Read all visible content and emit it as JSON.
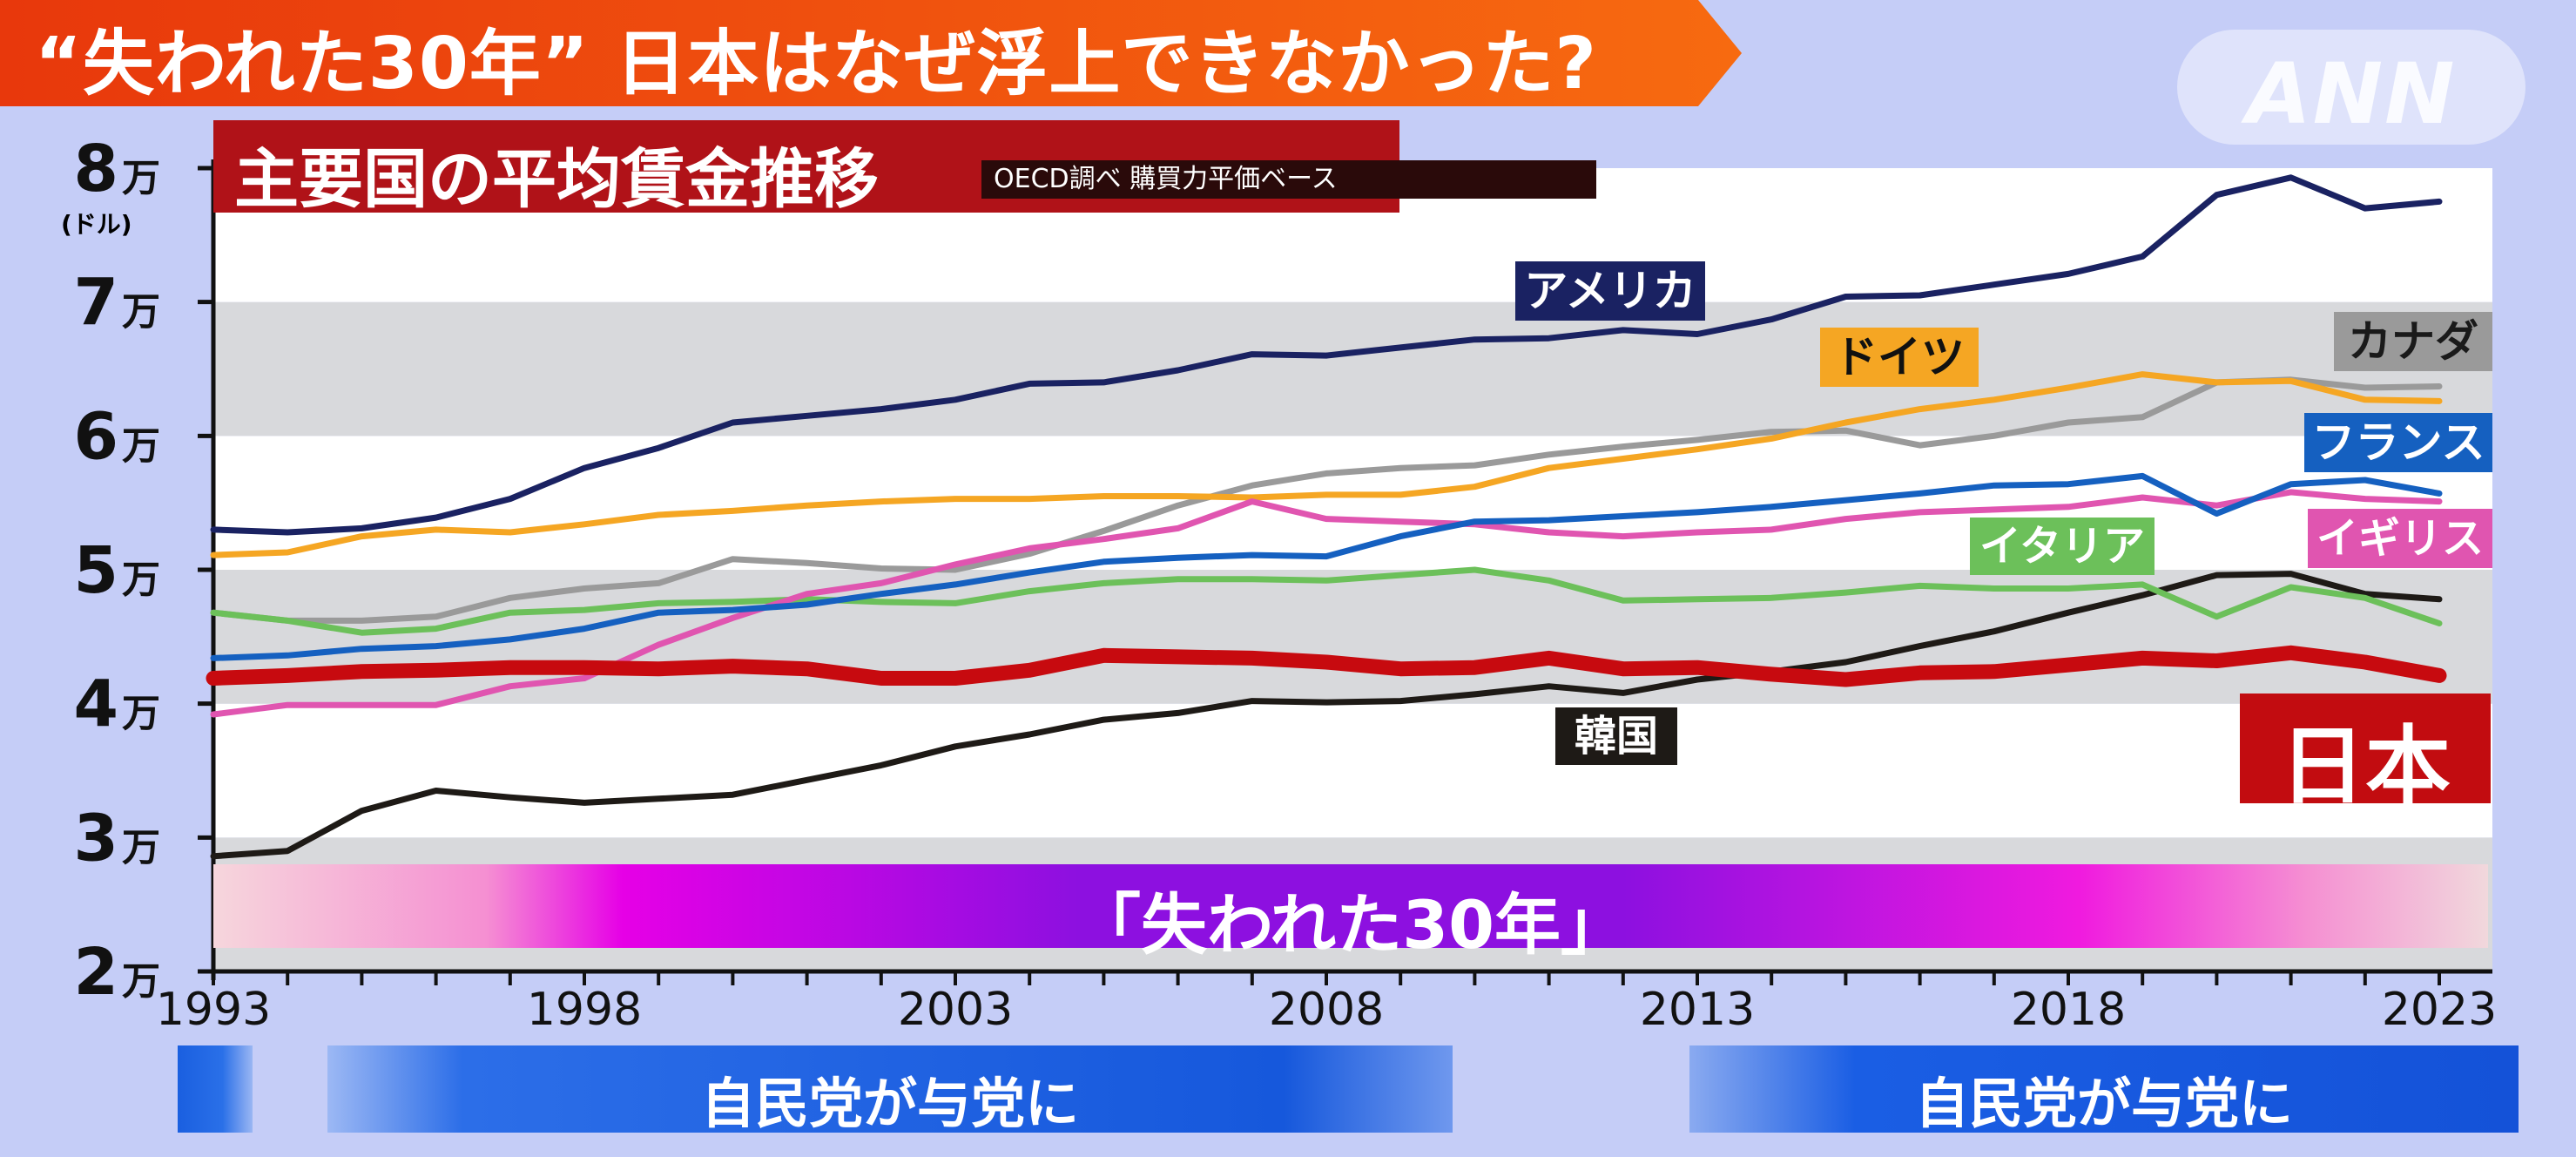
{
  "header": {
    "title": "“失われた30年” 日本はなぜ浮上できなかった?",
    "logo": "ANN"
  },
  "subtitle": {
    "main": "主要国の平均賃金推移",
    "note": "OECD調べ 購買力平価ベース"
  },
  "colors": {
    "banner": "#f24a0c",
    "subtitle_bg": "#b01218",
    "america": "#1a2262",
    "germany": "#f5a623",
    "canada": "#9a9a9a",
    "france": "#1560c0",
    "uk": "#e055b0",
    "italy": "#6cc05a",
    "korea": "#1e1a16",
    "japan": "#c70a0f",
    "band_gray": "#d8d9dc"
  },
  "lost_decades_label": "「失われた30年」",
  "ldp_periods": [
    {
      "label": "自民党が与党に"
    },
    {
      "label": "自民党が与党に"
    }
  ],
  "chart_data": {
    "type": "line",
    "title": "主要国の平均賃金推移",
    "subtitle": "OECD調べ 購買力平価ベース",
    "ylabel_unit": "(ドル)",
    "ylim": [
      20000,
      80000
    ],
    "yticks": [
      {
        "value": 80000,
        "label": "8万"
      },
      {
        "value": 70000,
        "label": "7万"
      },
      {
        "value": 60000,
        "label": "6万"
      },
      {
        "value": 50000,
        "label": "5万"
      },
      {
        "value": 40000,
        "label": "4万"
      },
      {
        "value": 30000,
        "label": "3万"
      },
      {
        "value": 20000,
        "label": "2万"
      }
    ],
    "xlim": [
      1993,
      2023
    ],
    "xticks": [
      1993,
      1998,
      2003,
      2008,
      2013,
      2018,
      2023
    ],
    "x": [
      1993,
      1994,
      1995,
      1996,
      1997,
      1998,
      1999,
      2000,
      2001,
      2002,
      2003,
      2004,
      2005,
      2006,
      2007,
      2008,
      2009,
      2010,
      2011,
      2012,
      2013,
      2014,
      2015,
      2016,
      2017,
      2018,
      2019,
      2020,
      2021,
      2022,
      2023
    ],
    "series": [
      {
        "key": "america",
        "name": "アメリカ",
        "color": "#1a2262",
        "width": 7,
        "values": [
          53000,
          52800,
          53100,
          53900,
          55300,
          57600,
          59100,
          61000,
          61500,
          62000,
          62700,
          63900,
          64000,
          64900,
          66100,
          66000,
          66600,
          67200,
          67300,
          67900,
          67600,
          68700,
          70400,
          70500,
          71300,
          72100,
          73400,
          78000,
          79300,
          77000,
          77500
        ]
      },
      {
        "key": "germany",
        "name": "ドイツ",
        "color": "#f5a623",
        "width": 7,
        "values": [
          51100,
          51300,
          52500,
          53000,
          52800,
          53400,
          54100,
          54400,
          54800,
          55100,
          55300,
          55300,
          55500,
          55500,
          55400,
          55600,
          55600,
          56200,
          57600,
          58300,
          59000,
          59800,
          61000,
          62000,
          62700,
          63600,
          64600,
          64000,
          64100,
          62700,
          62600
        ]
      },
      {
        "key": "canada",
        "name": "カナダ",
        "color": "#9a9a9a",
        "width": 7,
        "values": [
          46800,
          46200,
          46200,
          46500,
          47900,
          48600,
          49000,
          50800,
          50500,
          50100,
          50000,
          51200,
          52900,
          54800,
          56300,
          57200,
          57600,
          57800,
          58600,
          59200,
          59700,
          60300,
          60400,
          59300,
          60000,
          61000,
          61400,
          64000,
          64200,
          63600,
          63700
        ]
      },
      {
        "key": "france",
        "name": "フランス",
        "color": "#1560c0",
        "width": 7,
        "values": [
          43400,
          43600,
          44100,
          44300,
          44800,
          45600,
          46800,
          47000,
          47400,
          48200,
          48900,
          49800,
          50600,
          50900,
          51100,
          51000,
          52500,
          53600,
          53700,
          54000,
          54300,
          54700,
          55200,
          55700,
          56300,
          56400,
          57000,
          54200,
          56400,
          56700,
          55700
        ]
      },
      {
        "key": "uk",
        "name": "イギリス",
        "color": "#e055b0",
        "width": 7,
        "values": [
          39200,
          39900,
          39900,
          39900,
          41300,
          41900,
          44400,
          46400,
          48200,
          49000,
          50400,
          51600,
          52300,
          53100,
          55100,
          53800,
          53600,
          53400,
          52800,
          52500,
          52800,
          53000,
          53800,
          54300,
          54500,
          54700,
          55400,
          54800,
          55800,
          55300,
          55100
        ]
      },
      {
        "key": "italy",
        "name": "イタリア",
        "color": "#6cc05a",
        "width": 7,
        "values": [
          46800,
          46200,
          45300,
          45600,
          46800,
          47000,
          47500,
          47600,
          47800,
          47600,
          47500,
          48400,
          49000,
          49300,
          49300,
          49200,
          49600,
          50000,
          49200,
          47700,
          47800,
          47900,
          48300,
          48800,
          48600,
          48600,
          48900,
          46500,
          48700,
          47900,
          46000
        ]
      },
      {
        "key": "korea",
        "name": "韓国",
        "color": "#1e1a16",
        "width": 7,
        "values": [
          28600,
          29000,
          32000,
          33500,
          33000,
          32600,
          32900,
          33200,
          34300,
          35400,
          36800,
          37700,
          38800,
          39300,
          40200,
          40100,
          40200,
          40700,
          41300,
          40800,
          41800,
          42400,
          43100,
          44300,
          45400,
          46800,
          48100,
          49600,
          49700,
          48200,
          47800
        ]
      },
      {
        "key": "japan",
        "name": "日本",
        "color": "#c70a0f",
        "width": 17,
        "values": [
          41900,
          42100,
          42400,
          42500,
          42700,
          42700,
          42600,
          42800,
          42600,
          41900,
          41900,
          42500,
          43600,
          43500,
          43400,
          43100,
          42600,
          42700,
          43400,
          42600,
          42700,
          42200,
          41800,
          42300,
          42400,
          42900,
          43400,
          43200,
          43800,
          43100,
          42100
        ]
      }
    ],
    "series_labels": [
      {
        "key": "america",
        "text": "アメリカ",
        "bg": "#1a2262",
        "fg": "#ffffff"
      },
      {
        "key": "germany",
        "text": "ドイツ",
        "bg": "#f5a623",
        "fg": "#111111"
      },
      {
        "key": "canada",
        "text": "カナダ",
        "bg": "#9a9a9a",
        "fg": "#1a1a1a"
      },
      {
        "key": "france",
        "text": "フランス",
        "bg": "#1560c0",
        "fg": "#ffffff"
      },
      {
        "key": "italy",
        "text": "イタリア",
        "bg": "#6cc05a",
        "fg": "#ffffff"
      },
      {
        "key": "uk",
        "text": "イギリス",
        "bg": "#e055b0",
        "fg": "#ffffff"
      },
      {
        "key": "korea",
        "text": "韓国",
        "bg": "#1e1a16",
        "fg": "#ffffff"
      },
      {
        "key": "japan",
        "text": "日本",
        "bg": "#c20c10",
        "fg": "#ffffff"
      }
    ]
  }
}
